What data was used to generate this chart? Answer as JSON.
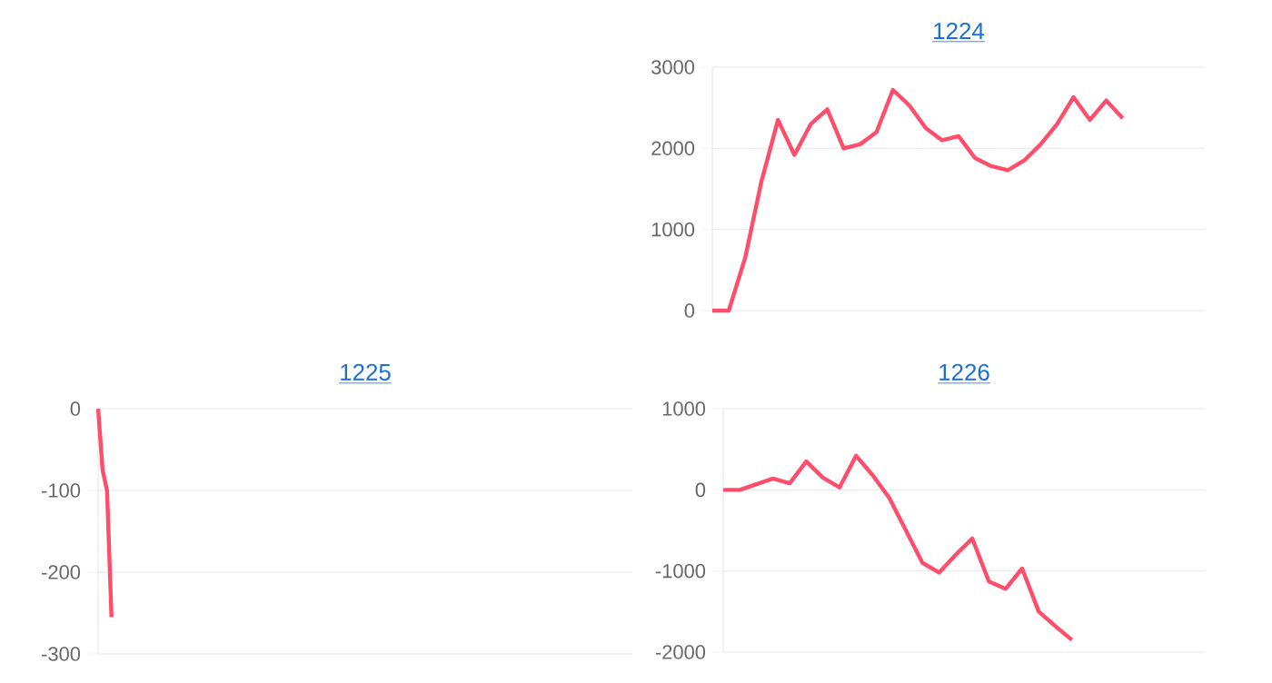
{
  "chart_data": [
    {
      "type": "line",
      "title": "1224",
      "categories": [
        null,
        null,
        null,
        null,
        null,
        null,
        null,
        null,
        null,
        null,
        null,
        null,
        null,
        null,
        null,
        null,
        null,
        null,
        null,
        null,
        null,
        null,
        null,
        null,
        null,
        null,
        null,
        null,
        null,
        null,
        null
      ],
      "series": [
        {
          "color": "#ff4d6a",
          "values": [
            0,
            0,
            650,
            1600,
            2350,
            1920,
            2300,
            2480,
            2000,
            2050,
            2200,
            2720,
            2530,
            2250,
            2100,
            2150,
            1880,
            1780,
            1730,
            1850,
            2050,
            2300,
            2630,
            2350,
            2590,
            2370,
            null,
            null,
            null,
            null,
            null
          ]
        }
      ],
      "ylim": [
        0,
        3000
      ],
      "yticks": [
        0,
        1000,
        2000,
        3000
      ],
      "grid": "y"
    },
    {
      "type": "line",
      "title": "1225",
      "categories": [
        null,
        null,
        null,
        null,
        null,
        null,
        null,
        null,
        null,
        null,
        null,
        null,
        null,
        null,
        null,
        null,
        null,
        null,
        null,
        null,
        null,
        null,
        null,
        null,
        null,
        null,
        null,
        null,
        null,
        null,
        null,
        null,
        null,
        null,
        null,
        null,
        null,
        null,
        null,
        null,
        null,
        null,
        null,
        null,
        null,
        null,
        null,
        null,
        null,
        null,
        null,
        null,
        null,
        null,
        null,
        null,
        null,
        null,
        null,
        null,
        null,
        null,
        null,
        null,
        null,
        null,
        null,
        null,
        null,
        null,
        null,
        null,
        null,
        null,
        null,
        null,
        null,
        null,
        null,
        null,
        null,
        null,
        null,
        null,
        null,
        null,
        null,
        null,
        null,
        null,
        null,
        null,
        null,
        null,
        null,
        null,
        null,
        null,
        null,
        null,
        null,
        null,
        null,
        null,
        null,
        null,
        null,
        null,
        null,
        null,
        null,
        null,
        null,
        null,
        null,
        null,
        null,
        null,
        null,
        null,
        null
      ],
      "series": [
        {
          "color": "#ff4d6a",
          "values": [
            0,
            -75,
            -100,
            -255,
            null,
            null,
            null,
            null,
            null,
            null,
            null,
            null,
            null,
            null,
            null,
            null,
            null,
            null,
            null,
            null,
            null,
            null,
            null,
            null,
            null,
            null,
            null,
            null,
            null,
            null,
            null,
            null,
            null,
            null,
            null,
            null,
            null,
            null,
            null,
            null,
            null,
            null,
            null,
            null,
            null,
            null,
            null,
            null,
            null,
            null,
            null,
            null,
            null,
            null,
            null,
            null,
            null,
            null,
            null,
            null,
            null,
            null,
            null,
            null,
            null,
            null,
            null,
            null,
            null,
            null,
            null,
            null,
            null,
            null,
            null,
            null,
            null,
            null,
            null,
            null,
            null,
            null,
            null,
            null,
            null,
            null,
            null,
            null,
            null,
            null,
            null,
            null,
            null,
            null,
            null,
            null,
            null,
            null,
            null,
            null,
            null,
            null,
            null,
            null,
            null,
            null,
            null,
            null,
            null,
            null,
            null,
            null,
            null,
            null,
            null,
            null,
            null,
            null,
            null,
            null,
            null
          ]
        }
      ],
      "ylim": [
        -300,
        0
      ],
      "yticks": [
        -300,
        -200,
        -100,
        0
      ],
      "grid": "y"
    },
    {
      "type": "line",
      "title": "1226",
      "categories": [
        null,
        null,
        null,
        null,
        null,
        null,
        null,
        null,
        null,
        null,
        null,
        null,
        null,
        null,
        null,
        null,
        null,
        null,
        null,
        null,
        null,
        null,
        null,
        null,
        null,
        null,
        null,
        null,
        null,
        null
      ],
      "series": [
        {
          "color": "#ff4d6a",
          "values": [
            0,
            0,
            70,
            140,
            80,
            350,
            150,
            30,
            420,
            180,
            -100,
            -500,
            -900,
            -1020,
            -800,
            -600,
            -1130,
            -1220,
            -970,
            -1500,
            -1680,
            -1850,
            null,
            null,
            null,
            null,
            null,
            null,
            null,
            null
          ]
        }
      ],
      "ylim": [
        -2000,
        1000
      ],
      "yticks": [
        -2000,
        -1000,
        0,
        1000
      ],
      "grid": "y"
    }
  ]
}
